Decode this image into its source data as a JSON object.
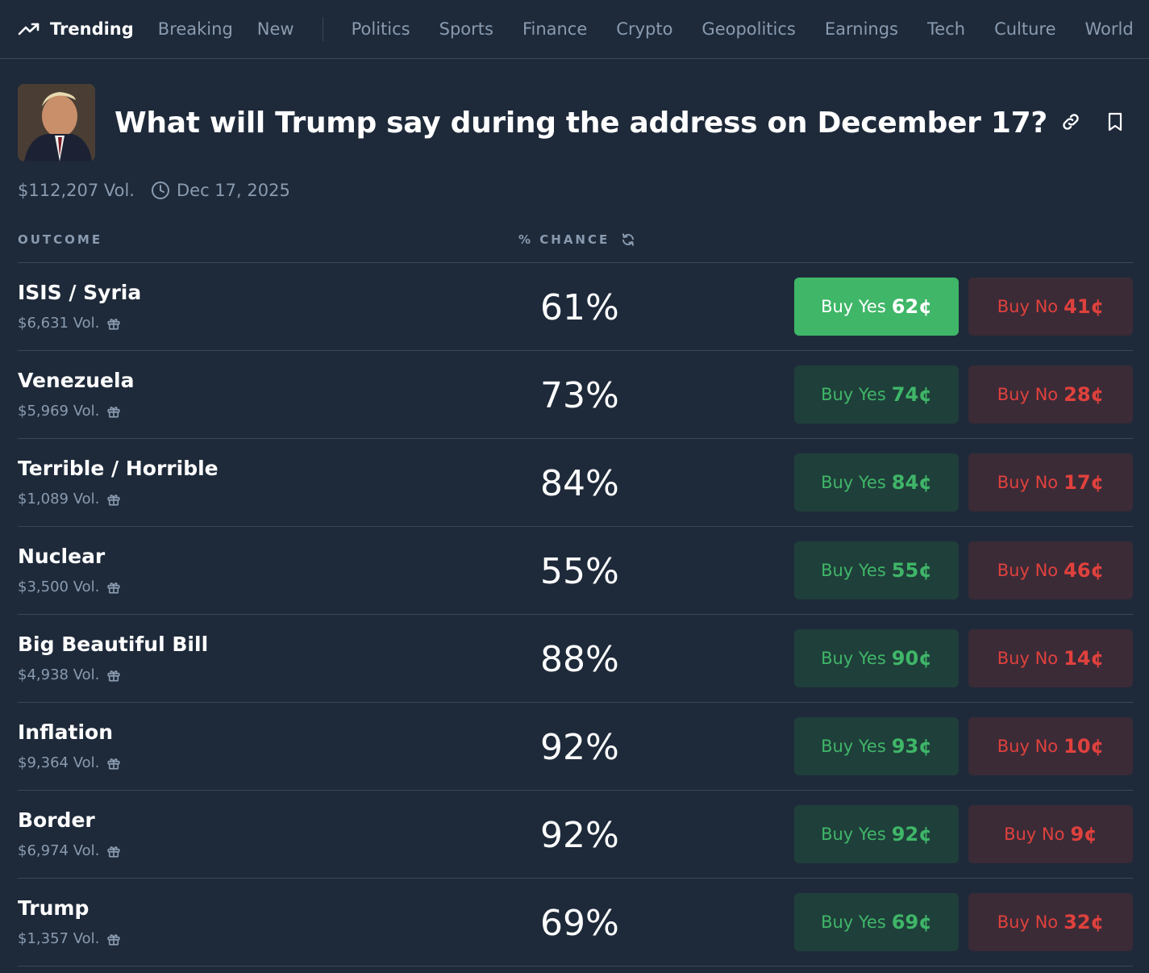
{
  "nav": {
    "trending": "Trending",
    "breaking": "Breaking",
    "new": "New",
    "categories": [
      "Politics",
      "Sports",
      "Finance",
      "Crypto",
      "Geopolitics",
      "Earnings",
      "Tech",
      "Culture",
      "World"
    ]
  },
  "market": {
    "title": "What will Trump say during the address on December 17?",
    "volume": "$112,207 Vol.",
    "date": "Dec 17, 2025"
  },
  "columns": {
    "outcome": "OUTCOME",
    "chance": "% CHANCE"
  },
  "buy_yes_label": "Buy Yes",
  "buy_no_label": "Buy No",
  "outcomes": [
    {
      "name": "ISIS / Syria",
      "vol": "$6,631 Vol.",
      "chance": "61%",
      "yes": "62¢",
      "no": "41¢"
    },
    {
      "name": "Venezuela",
      "vol": "$5,969 Vol.",
      "chance": "73%",
      "yes": "74¢",
      "no": "28¢"
    },
    {
      "name": "Terrible / Horrible",
      "vol": "$1,089 Vol.",
      "chance": "84%",
      "yes": "84¢",
      "no": "17¢"
    },
    {
      "name": "Nuclear",
      "vol": "$3,500 Vol.",
      "chance": "55%",
      "yes": "55¢",
      "no": "46¢"
    },
    {
      "name": "Big Beautiful Bill",
      "vol": "$4,938 Vol.",
      "chance": "88%",
      "yes": "90¢",
      "no": "14¢"
    },
    {
      "name": "Inflation",
      "vol": "$9,364 Vol.",
      "chance": "92%",
      "yes": "93¢",
      "no": "10¢"
    },
    {
      "name": "Border",
      "vol": "$6,974 Vol.",
      "chance": "92%",
      "yes": "92¢",
      "no": "9¢"
    },
    {
      "name": "Trump",
      "vol": "$1,357 Vol.",
      "chance": "69%",
      "yes": "69¢",
      "no": "32¢"
    }
  ],
  "colors": {
    "background": "#1e2a3a",
    "yes": "#3fb668",
    "no": "#e0413d",
    "muted": "#8a9bb0"
  },
  "icons": [
    "trending-icon",
    "link-icon",
    "bookmark-icon",
    "clock-icon",
    "refresh-icon",
    "gift-icon"
  ]
}
